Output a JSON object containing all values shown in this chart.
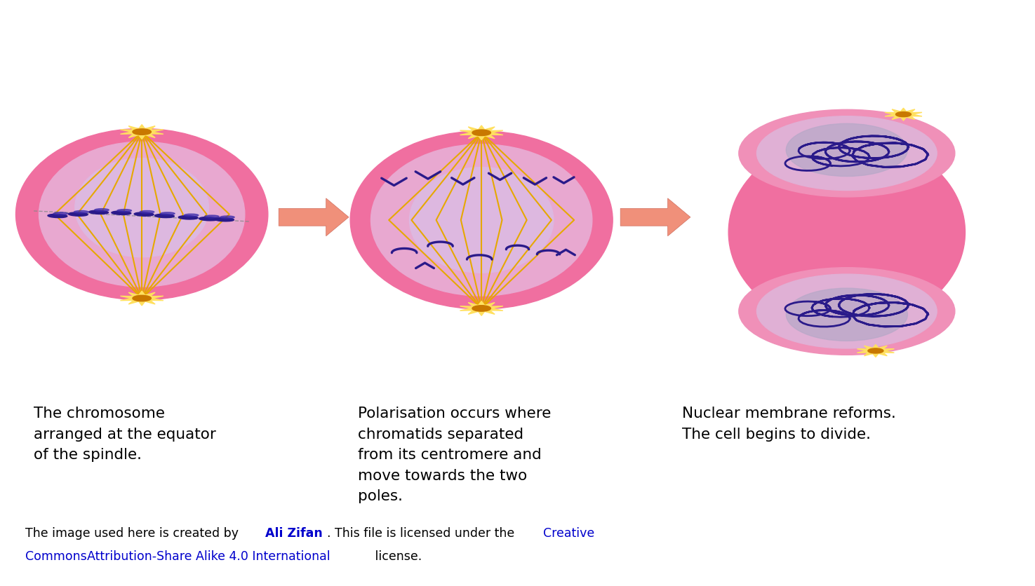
{
  "background_color": "#ffffff",
  "fig_width": 14.75,
  "fig_height": 8.37,
  "cell_outer_color": "#f06fa0",
  "cell_inner_color": "#e8a8d0",
  "cell_center_color": "#ddb8e0",
  "spindle_color": "#e6a800",
  "chromosome_color": "#2a1a8a",
  "arrow_color": "#f0907a",
  "text_color": "#000000",
  "link_color": "#0000cc",
  "label1": "The chromosome\narranged at the equator\nof the spindle.",
  "label2": "Polarisation occurs where\nchromatids separated\nfrom its centromere and\nmove towards the two\npoles.",
  "label3": "Nuclear membrane reforms.\nThe cell begins to divide.",
  "footer_line1_plain1": "The image used here is created by ",
  "footer_line1_link1": "Ali Zifan",
  "footer_line1_plain2": ". This file is licensed under the ",
  "footer_line1_link2": "Creative",
  "footer_line2_link1": "Commons",
  "footer_line2_link2": "Attribution-Share Alike 4.0 International",
  "footer_line2_plain": " license."
}
